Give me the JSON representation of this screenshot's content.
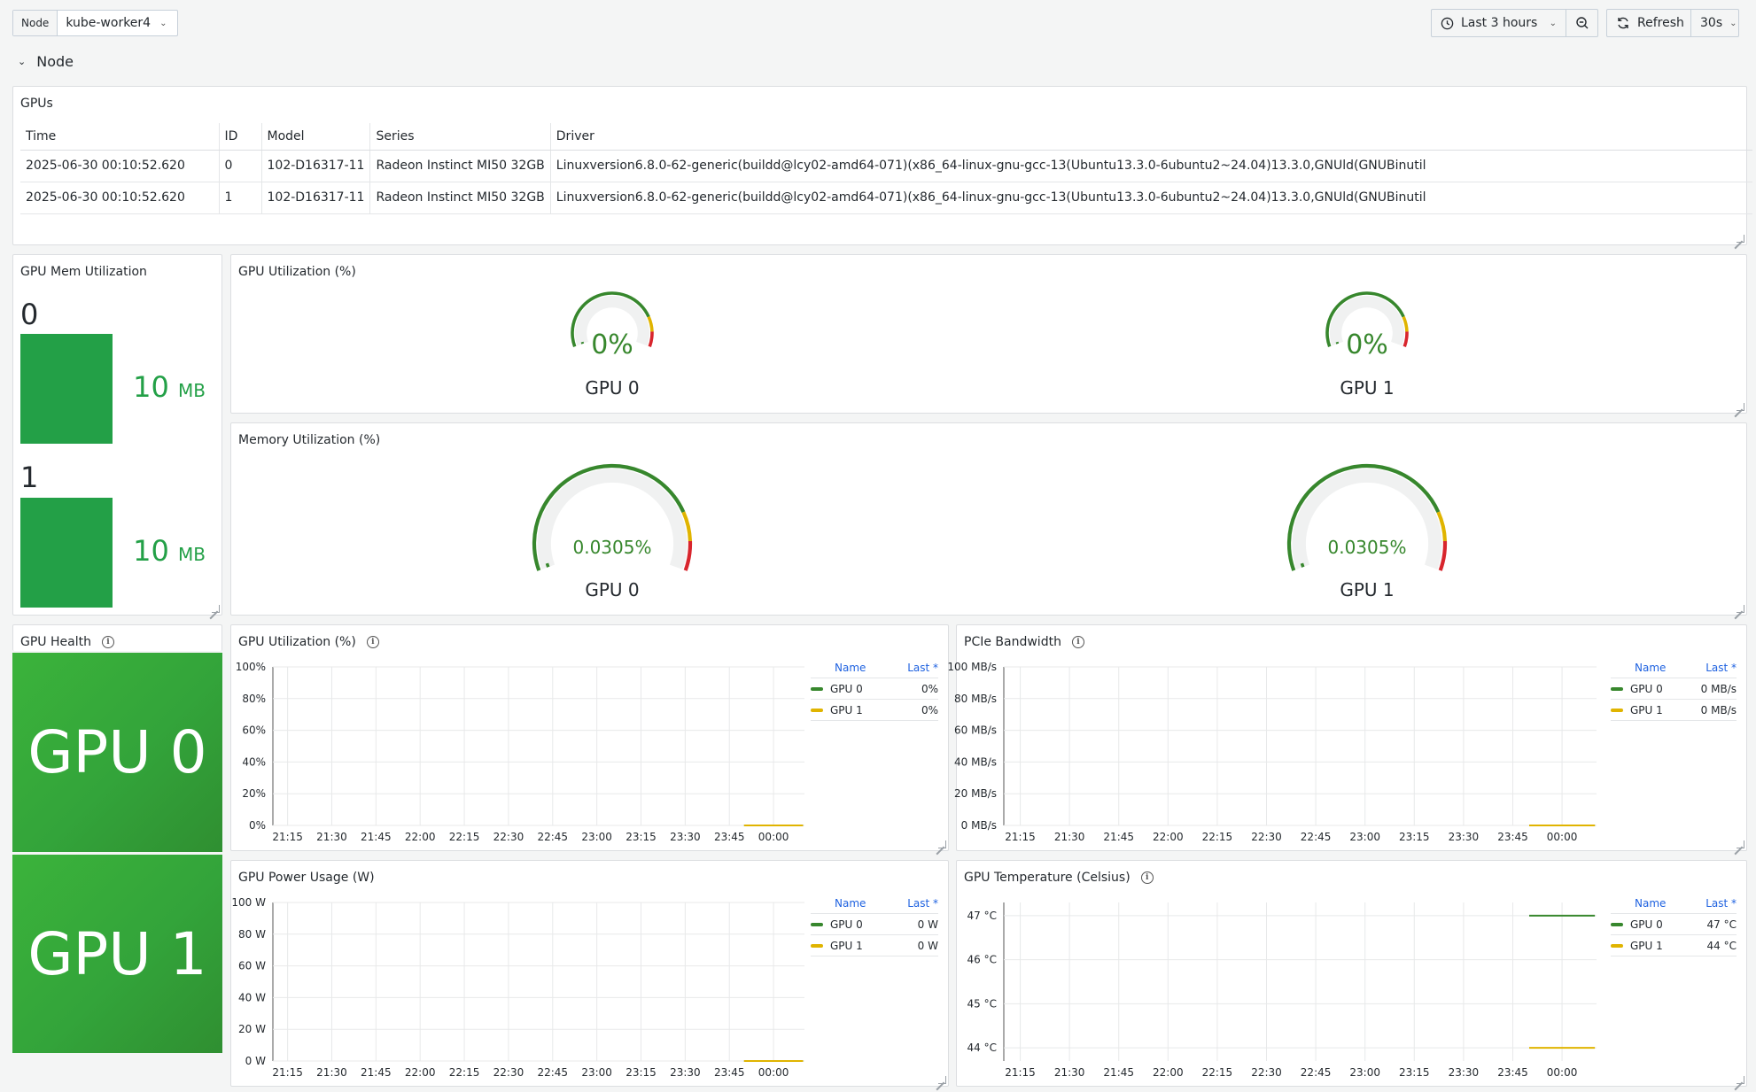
{
  "topbar": {
    "variable_label": "Node",
    "variable_value": "kube-worker4",
    "time_range": "Last 3 hours",
    "refresh_label": "Refresh",
    "refresh_interval": "30s"
  },
  "row": {
    "title": "Node"
  },
  "colors": {
    "green": "#37872d",
    "yellow": "#e0b400",
    "red": "#d8252d",
    "bar_green": "#23a047"
  },
  "gpus_panel": {
    "title": "GPUs",
    "columns": [
      "Time",
      "ID",
      "Model",
      "Series",
      "Driver"
    ],
    "rows": [
      [
        "2025-06-30 00:10:52.620",
        "0",
        "102-D16317-11",
        "Radeon Instinct MI50 32GB",
        "Linuxversion6.8.0-62-generic(buildd@lcy02-amd64-071)(x86_64-linux-gnu-gcc-13(Ubuntu13.3.0-6ubuntu2~24.04)13.3.0,GNUld(GNUBinutil"
      ],
      [
        "2025-06-30 00:10:52.620",
        "1",
        "102-D16317-11",
        "Radeon Instinct MI50 32GB",
        "Linuxversion6.8.0-62-generic(buildd@lcy02-amd64-071)(x86_64-linux-gnu-gcc-13(Ubuntu13.3.0-6ubuntu2~24.04)13.3.0,GNUld(GNUBinutil"
      ]
    ]
  },
  "mem_panel": {
    "title": "GPU Mem Utilization",
    "items": [
      {
        "label": "0",
        "value": "10",
        "unit": "MB"
      },
      {
        "label": "1",
        "value": "10",
        "unit": "MB"
      }
    ]
  },
  "gpu_util_gauges": {
    "title": "GPU Utilization (%)",
    "gauges": [
      {
        "name": "GPU 0",
        "value_text": "0%",
        "fraction": 0
      },
      {
        "name": "GPU 1",
        "value_text": "0%",
        "fraction": 0
      }
    ]
  },
  "mem_util_gauges": {
    "title": "Memory Utilization (%)",
    "gauges": [
      {
        "name": "GPU 0",
        "value_text": "0.0305%",
        "fraction": 0.000305
      },
      {
        "name": "GPU 1",
        "value_text": "0.0305%",
        "fraction": 0.000305
      }
    ]
  },
  "health_panel": {
    "title": "GPU Health",
    "items": [
      "GPU 0",
      "GPU 1"
    ]
  },
  "legend_headers": {
    "name": "Name",
    "last": "Last *"
  },
  "x_ticks": [
    "21:15",
    "21:30",
    "21:45",
    "22:00",
    "22:15",
    "22:30",
    "22:45",
    "23:00",
    "23:15",
    "23:30",
    "23:45",
    "00:00"
  ],
  "charts": {
    "gpu_util": {
      "title": "GPU Utilization (%)",
      "legend": [
        {
          "name": "GPU 0",
          "last": "0%",
          "color": "#37872d"
        },
        {
          "name": "GPU 1",
          "last": "0%",
          "color": "#e0b400"
        }
      ]
    },
    "pcie": {
      "title": "PCIe Bandwidth",
      "legend": [
        {
          "name": "GPU 0",
          "last": "0 MB/s",
          "color": "#37872d"
        },
        {
          "name": "GPU 1",
          "last": "0 MB/s",
          "color": "#e0b400"
        }
      ]
    },
    "power": {
      "title": "GPU Power Usage (W)",
      "legend": [
        {
          "name": "GPU 0",
          "last": "0 W",
          "color": "#37872d"
        },
        {
          "name": "GPU 1",
          "last": "0 W",
          "color": "#e0b400"
        }
      ]
    },
    "temp": {
      "title": "GPU Temperature (Celsius)",
      "legend": [
        {
          "name": "GPU 0",
          "last": "47 °C",
          "color": "#37872d"
        },
        {
          "name": "GPU 1",
          "last": "44 °C",
          "color": "#e0b400"
        }
      ]
    }
  },
  "chart_data": [
    {
      "type": "line",
      "title": "GPU Utilization (%)",
      "x": [
        "21:15",
        "21:30",
        "21:45",
        "22:00",
        "22:15",
        "22:30",
        "22:45",
        "23:00",
        "23:15",
        "23:30",
        "23:45",
        "00:00"
      ],
      "y_ticks": [
        "0%",
        "20%",
        "40%",
        "60%",
        "80%",
        "100%"
      ],
      "ylim": [
        0,
        100
      ],
      "series": [
        {
          "name": "GPU 0",
          "x": [
            "23:50",
            "00:10"
          ],
          "values": [
            0,
            0
          ],
          "color": "#37872d"
        },
        {
          "name": "GPU 1",
          "x": [
            "23:50",
            "00:10"
          ],
          "values": [
            0,
            0
          ],
          "color": "#e0b400"
        }
      ]
    },
    {
      "type": "line",
      "title": "PCIe Bandwidth",
      "x": [
        "21:15",
        "21:30",
        "21:45",
        "22:00",
        "22:15",
        "22:30",
        "22:45",
        "23:00",
        "23:15",
        "23:30",
        "23:45",
        "00:00"
      ],
      "y_ticks": [
        "0 MB/s",
        "20 MB/s",
        "40 MB/s",
        "60 MB/s",
        "80 MB/s",
        "100 MB/s"
      ],
      "ylim": [
        0,
        100
      ],
      "series": [
        {
          "name": "GPU 0",
          "x": [
            "23:50",
            "00:10"
          ],
          "values": [
            0,
            0
          ],
          "color": "#37872d"
        },
        {
          "name": "GPU 1",
          "x": [
            "23:50",
            "00:10"
          ],
          "values": [
            0,
            0
          ],
          "color": "#e0b400"
        }
      ]
    },
    {
      "type": "line",
      "title": "GPU Power Usage (W)",
      "x": [
        "21:15",
        "21:30",
        "21:45",
        "22:00",
        "22:15",
        "22:30",
        "22:45",
        "23:00",
        "23:15",
        "23:30",
        "23:45",
        "00:00"
      ],
      "y_ticks": [
        "0 W",
        "20 W",
        "40 W",
        "60 W",
        "80 W",
        "100 W"
      ],
      "ylim": [
        0,
        100
      ],
      "series": [
        {
          "name": "GPU 0",
          "x": [
            "23:50",
            "00:10"
          ],
          "values": [
            0,
            0
          ],
          "color": "#37872d"
        },
        {
          "name": "GPU 1",
          "x": [
            "23:50",
            "00:10"
          ],
          "values": [
            0,
            0
          ],
          "color": "#e0b400"
        }
      ]
    },
    {
      "type": "line",
      "title": "GPU Temperature (Celsius)",
      "x": [
        "21:15",
        "21:30",
        "21:45",
        "22:00",
        "22:15",
        "22:30",
        "22:45",
        "23:00",
        "23:15",
        "23:30",
        "23:45",
        "00:00"
      ],
      "y_ticks": [
        "44 °C",
        "45 °C",
        "46 °C",
        "47 °C"
      ],
      "ylim": [
        43.7,
        47.3
      ],
      "series": [
        {
          "name": "GPU 0",
          "x": [
            "23:50",
            "00:10"
          ],
          "values": [
            47,
            47
          ],
          "color": "#37872d"
        },
        {
          "name": "GPU 1",
          "x": [
            "23:50",
            "00:10"
          ],
          "values": [
            44,
            44
          ],
          "color": "#e0b400"
        }
      ]
    }
  ]
}
